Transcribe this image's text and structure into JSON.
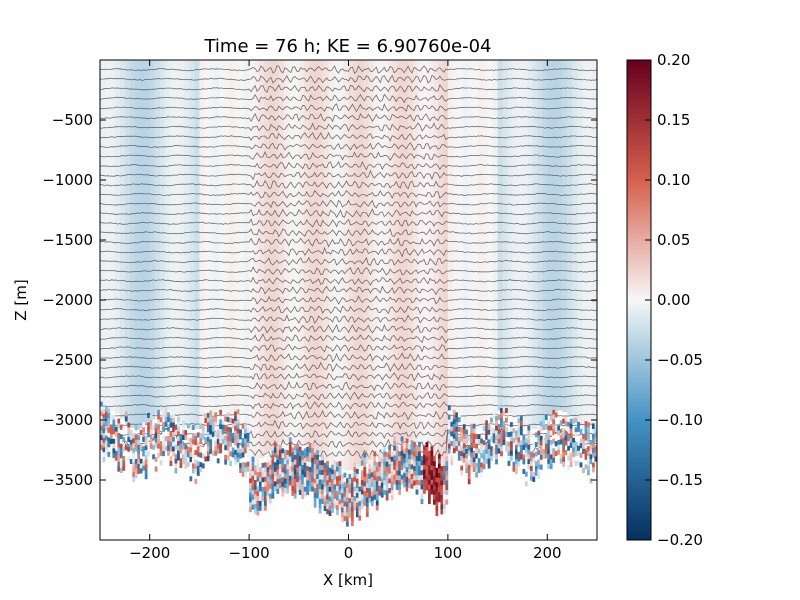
{
  "chart_data": [
    {
      "type": "heatmap",
      "title": "Time = 76 h; KE = 6.90760e-04",
      "xlabel": "X [km]",
      "ylabel": "Z [m]",
      "xlim": [
        -250,
        250
      ],
      "ylim": [
        -4000,
        0
      ],
      "xticks": [
        -200,
        -100,
        0,
        100,
        200
      ],
      "xtick_labels": [
        "−200",
        "−100",
        "0",
        "100",
        "200"
      ],
      "yticks": [
        -500,
        -1000,
        -1500,
        -2000,
        -2500,
        -3000,
        -3500
      ],
      "ytick_labels": [
        "−500",
        "−1000",
        "−1500",
        "−2000",
        "−2500",
        "−3000",
        "−3500"
      ],
      "colormap": "RdBu_r",
      "description_fields": {
        "upper_field_range": [
          -0.05,
          0.05
        ],
        "bottom_extreme_range": [
          -0.2,
          0.2
        ],
        "contour_lines": "isopycnals, gray"
      },
      "seafloor_depth_range_m": [
        -3900,
        -3200
      ]
    },
    {
      "type": "colorbar",
      "range": [
        -0.2,
        0.2
      ],
      "ticks": [
        0.2,
        0.15,
        0.1,
        0.05,
        0.0,
        -0.05,
        -0.1,
        -0.15,
        -0.2
      ],
      "tick_labels": [
        "0.20",
        "0.15",
        "0.10",
        "0.05",
        "0.00",
        "−0.05",
        "−0.10",
        "−0.15",
        "−0.20"
      ],
      "colors": {
        "min": "#053061",
        "low": "#4393c3",
        "mid": "#f7f7f7",
        "high": "#d6604d",
        "max": "#67001f"
      }
    }
  ]
}
